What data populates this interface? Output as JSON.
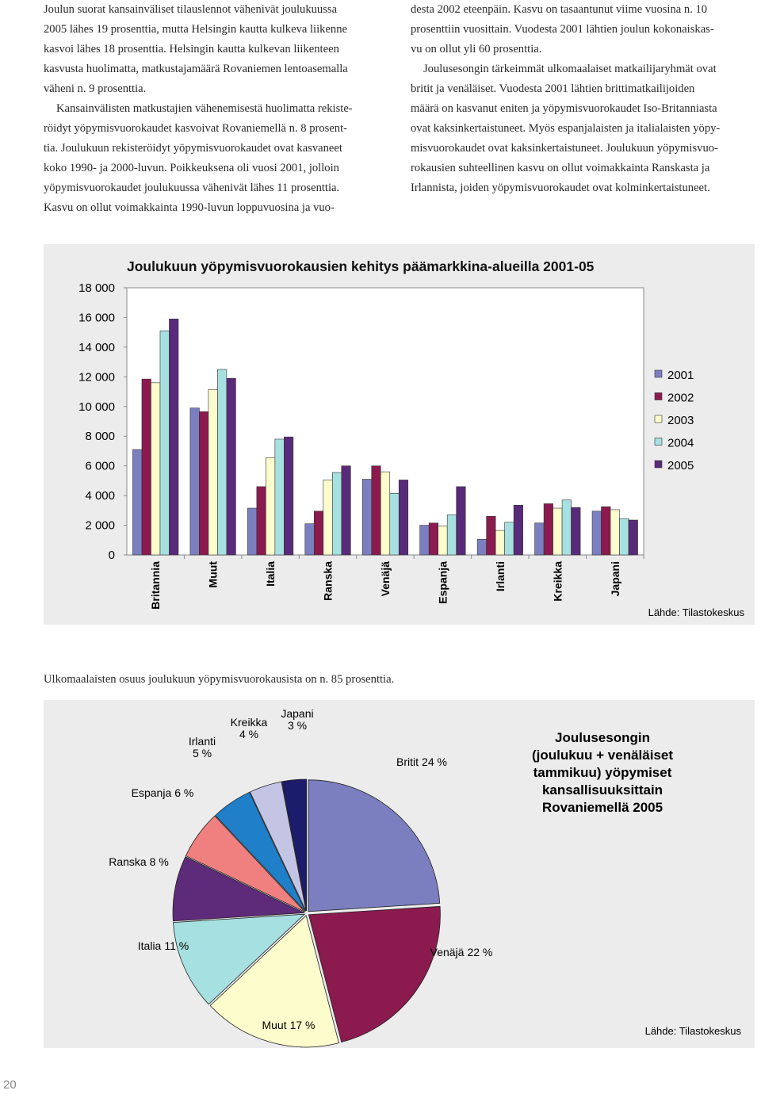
{
  "text_left": [
    [
      "Joulun suorat kansainväliset tilauslennot vähenivät joulukuussa",
      "2005 lähes 19 prosenttia, mutta Helsingin kautta kulkeva liikenne",
      "kasvoi lähes 18 prosenttia. Helsingin kautta kulkevan liikenteen",
      "kasvusta huolimatta, matkustajamäärä Rovaniemen lentoasemalla",
      "väheni n. 9 prosenttia."
    ],
    [
      "Kansainvälisten matkustajien vähenemisestä huolimatta rekiste-",
      "röidyt yöpymisvuorokaudet kasvoivat Rovaniemellä n. 8 prosent-",
      "tia. Joulukuun rekisteröidyt yöpymisvuorokaudet ovat kasvaneet",
      "koko 1990- ja 2000-luvun. Poikkeuksena oli vuosi 2001, jolloin",
      "yöpymisvuorokaudet joulukuussa vähenivät lähes 11 prosenttia.",
      "Kasvu on ollut voimakkainta 1990-luvun loppuvuosina ja vuo-"
    ]
  ],
  "text_right": [
    [
      "desta 2002 eteenpäin. Kasvu on tasaantunut viime vuosina n. 10",
      "prosenttiin vuosittain. Vuodesta 2001 lähtien joulun kokonaiskas-",
      "vu on ollut yli 60 prosenttia."
    ],
    [
      "Joulusesongin tärkeimmät ulkomaalaiset matkailijaryhmät ovat",
      "britit ja venäläiset. Vuodesta 2001 lähtien brittimatkailijoiden",
      "määrä on kasvanut eniten ja yöpymisvuorokaudet Iso-Britanniasta",
      "ovat kaksinkertaistuneet. Myös espanjalaisten ja italialaisten yöpy-",
      "misvuorokaudet ovat kaksinkertaistuneet. Joulukuun yöpymisvuo-",
      "rokausien suhteellinen kasvu on ollut voimakkainta Ranskasta ja",
      "Irlannista, joiden yöpymisvuorokaudet ovat kolminkertaistuneet."
    ]
  ],
  "caption": "Ulkomaalaisten osuus joulukuun yöpymisvuorokausista on n. 85 prosenttia.",
  "page_number": "20",
  "chart_data": [
    {
      "type": "bar",
      "title": "Joulukuun yöpymisvuorokausien kehitys päämarkkina-alueilla 2001-05",
      "categories": [
        "Britannia",
        "Muut",
        "Italia",
        "Ranska",
        "Venäjä",
        "Espanja",
        "Irlanti",
        "Kreikka",
        "Japani"
      ],
      "series": [
        {
          "name": "2001",
          "color": "#7b7fc0",
          "values": [
            7100,
            9900,
            3150,
            2100,
            5100,
            2000,
            1050,
            2150,
            2950
          ]
        },
        {
          "name": "2002",
          "color": "#8b1a4f",
          "values": [
            11850,
            9650,
            4600,
            2950,
            6000,
            2150,
            2600,
            3450,
            3250
          ]
        },
        {
          "name": "2003",
          "color": "#fdfccc",
          "values": [
            11600,
            11150,
            6550,
            5050,
            5600,
            1950,
            1650,
            3150,
            3050
          ]
        },
        {
          "name": "2004",
          "color": "#a7e0e0",
          "values": [
            15100,
            12500,
            7800,
            5550,
            4150,
            2700,
            2200,
            3700,
            2450
          ]
        },
        {
          "name": "2005",
          "color": "#5a2a7a",
          "values": [
            15900,
            11900,
            7950,
            6000,
            5050,
            4600,
            3350,
            3200,
            2350
          ]
        }
      ],
      "ylim": [
        0,
        18000
      ],
      "yticks": [
        0,
        {
          "value": 2000,
          "label": "2 000"
        },
        {
          "value": 4000,
          "label": "4 000"
        },
        {
          "value": 6000,
          "label": "6 000"
        },
        {
          "value": 8000,
          "label": "8 000"
        },
        {
          "value": 10000,
          "label": "10 000"
        },
        {
          "value": 12000,
          "label": "12 000"
        },
        {
          "value": 14000,
          "label": "14 000"
        },
        {
          "value": 16000,
          "label": "16 000"
        },
        {
          "value": 18000,
          "label": "18 000"
        }
      ],
      "grid": false,
      "legend": "right",
      "source": "Lähde: Tilastokeskus"
    },
    {
      "type": "pie",
      "title": [
        "Joulusesongin",
        "(joulukuu + venäläiset",
        "tammikuu) yöpymiset",
        "kansallisuuksittain",
        "Rovaniemellä 2005"
      ],
      "categories": [
        "Britit",
        "Venäjä",
        "Muut",
        "Italia",
        "Ranska",
        "Espanja",
        "Irlanti",
        "Kreikka",
        "Japani"
      ],
      "values": [
        24,
        22,
        17,
        11,
        8,
        6,
        5,
        4,
        3
      ],
      "value_labels": [
        "24 %",
        "22 %",
        "17 %",
        "11 %",
        "8 %",
        "6 %",
        "5 %",
        "4 %",
        "3 %"
      ],
      "colors": [
        "#7b7fc0",
        "#8b1a4f",
        "#fdfccc",
        "#a7e0e0",
        "#5e2a7a",
        "#f08080",
        "#1f7fc8",
        "#c4c4e4",
        "#1c1c6c"
      ],
      "source": "Lähde: Tilastokeskus"
    }
  ]
}
